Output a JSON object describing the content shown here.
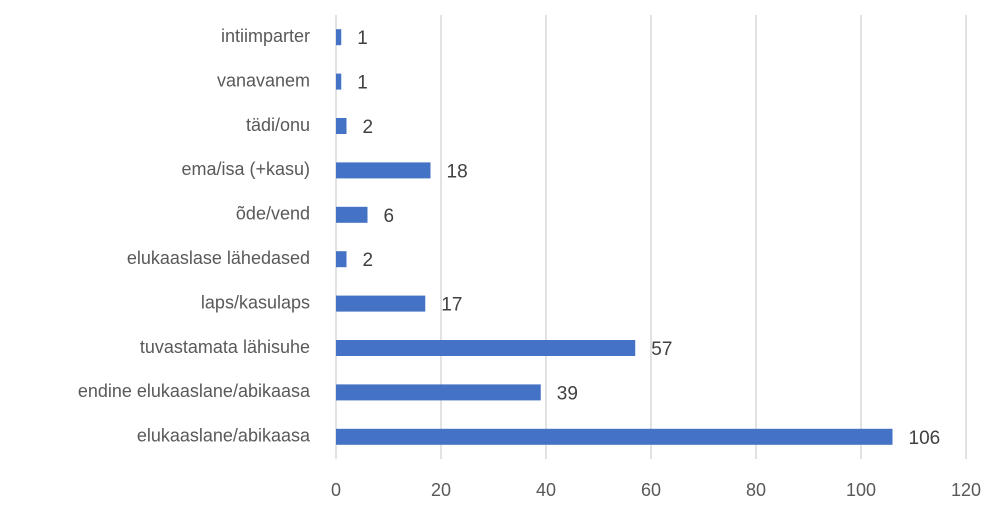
{
  "chart_data": {
    "type": "bar",
    "orientation": "horizontal",
    "categories": [
      "intiimparter",
      "vanavanem",
      "tädi/onu",
      "ema/isa (+kasu)",
      "õde/vend",
      "elukaaslase lähedased",
      "laps/kasulaps",
      "tuvastamata lähisuhe",
      "endine elukaaslane/abikaasa",
      "elukaaslane/abikaasa"
    ],
    "values": [
      1,
      1,
      2,
      18,
      6,
      2,
      17,
      57,
      39,
      106
    ],
    "color": "#4472c4",
    "xlim": [
      0,
      120
    ],
    "xticks": [
      0,
      20,
      40,
      60,
      80,
      100,
      120
    ],
    "grid": true
  }
}
